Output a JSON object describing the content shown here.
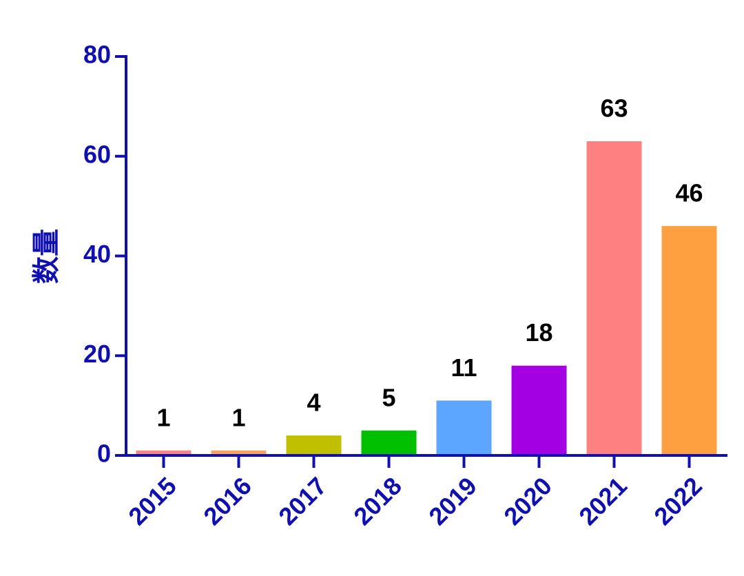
{
  "chart_data": {
    "type": "bar",
    "y_label": "数量",
    "categories": [
      "2015",
      "2016",
      "2017",
      "2018",
      "2019",
      "2020",
      "2021",
      "2022"
    ],
    "values": [
      1,
      1,
      4,
      5,
      11,
      18,
      63,
      46
    ],
    "colors": [
      "#f88484",
      "#f8a45c",
      "#c0c000",
      "#00c000",
      "#5ca6ff",
      "#a400e4",
      "#ff8080",
      "#ffa040"
    ],
    "ylim": [
      0,
      80
    ],
    "yticks": [
      0,
      20,
      40,
      60,
      80
    ],
    "grid": false
  }
}
